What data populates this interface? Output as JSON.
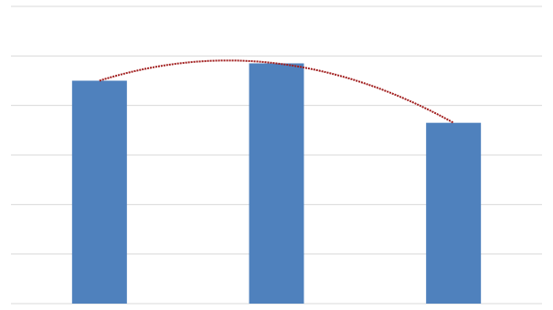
{
  "chart_data": {
    "type": "bar",
    "categories": [
      null,
      null,
      null
    ],
    "values": [
      4.5,
      4.85,
      3.65
    ],
    "color": "#4f81bd",
    "ylim": [
      0,
      6
    ],
    "yticks": [
      0,
      1,
      2,
      3,
      4,
      5,
      6
    ],
    "grid": true,
    "trendline": {
      "type": "polynomial",
      "order": 2,
      "color": "#a01c1c"
    }
  }
}
